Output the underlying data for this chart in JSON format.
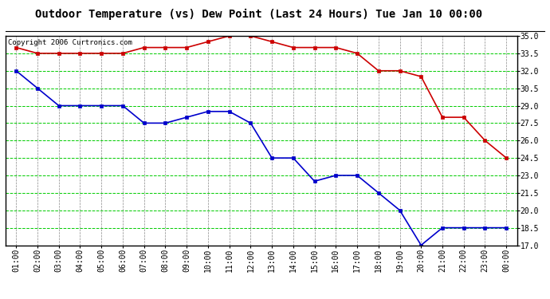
{
  "title": "Outdoor Temperature (vs) Dew Point (Last 24 Hours) Tue Jan 10 00:00",
  "copyright": "Copyright 2006 Curtronics.com",
  "x_labels": [
    "01:00",
    "02:00",
    "03:00",
    "04:00",
    "05:00",
    "06:00",
    "07:00",
    "08:00",
    "09:00",
    "10:00",
    "11:00",
    "12:00",
    "13:00",
    "14:00",
    "15:00",
    "16:00",
    "17:00",
    "18:00",
    "19:00",
    "20:00",
    "21:00",
    "22:00",
    "23:00",
    "00:00"
  ],
  "temp_data": [
    34.0,
    33.5,
    33.5,
    33.5,
    33.5,
    33.5,
    34.0,
    34.0,
    34.0,
    34.5,
    35.0,
    35.0,
    34.5,
    34.0,
    34.0,
    34.0,
    33.5,
    32.0,
    32.0,
    31.5,
    28.0,
    28.0,
    26.0,
    24.5
  ],
  "dew_data": [
    32.0,
    30.5,
    29.0,
    29.0,
    29.0,
    29.0,
    27.5,
    27.5,
    28.0,
    28.5,
    28.5,
    27.5,
    24.5,
    24.5,
    22.5,
    23.0,
    23.0,
    21.5,
    20.0,
    17.0,
    18.5,
    18.5,
    18.5,
    18.5
  ],
  "temp_color": "#cc0000",
  "dew_color": "#0000cc",
  "bg_color": "#ffffff",
  "plot_bg_color": "#ffffff",
  "grid_h_color": "#00cc00",
  "grid_v_color": "#888888",
  "ylim_min": 17.0,
  "ylim_max": 35.0,
  "ytick_labels": [
    17.0,
    18.5,
    20.0,
    21.5,
    23.0,
    24.5,
    26.0,
    27.5,
    29.0,
    30.5,
    32.0,
    33.5,
    35.0
  ],
  "marker": "s",
  "marker_size": 3,
  "line_width": 1.2,
  "title_fontsize": 10,
  "tick_fontsize": 7,
  "copyright_fontsize": 6.5
}
